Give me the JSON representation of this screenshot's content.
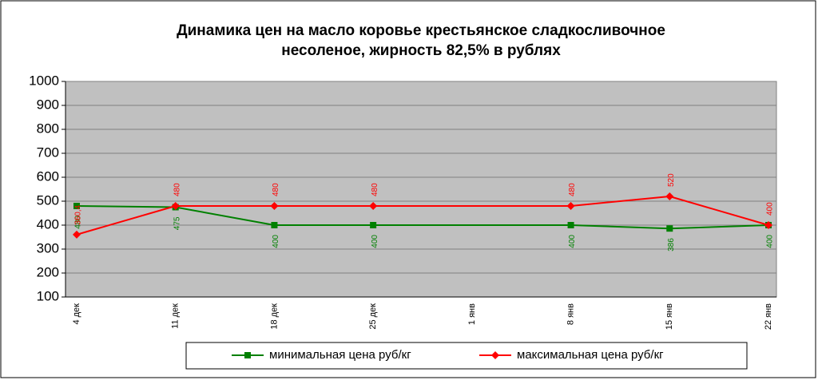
{
  "chart_data": {
    "type": "line",
    "title": [
      "Динамика цен на масло коровье крестьянское  сладкосливочное",
      "несоленое, жирность 82,5%  в рублях"
    ],
    "categories": [
      "4 дек",
      "11 дек",
      "18 дек",
      "25 дек",
      "1 янв",
      "8 янв",
      "15 янв",
      "22 янв"
    ],
    "series": [
      {
        "name": "минимальная цена руб/кг",
        "color": "#008000",
        "marker": "square",
        "values": [
          480,
          475,
          400,
          400,
          null,
          400,
          386,
          400
        ]
      },
      {
        "name": "максимальная цена руб/кг",
        "color": "#ff0000",
        "marker": "diamond",
        "values": [
          360.4,
          480,
          480,
          480,
          null,
          480,
          520,
          400
        ],
        "value_labels": [
          "360,4",
          "480",
          "480",
          "480",
          null,
          "480",
          "520",
          "400"
        ]
      }
    ],
    "ylim": [
      100,
      1000
    ],
    "yticks": [
      100,
      200,
      300,
      400,
      500,
      600,
      700,
      800,
      900,
      1000
    ],
    "grid": true,
    "legend": "bottom"
  }
}
